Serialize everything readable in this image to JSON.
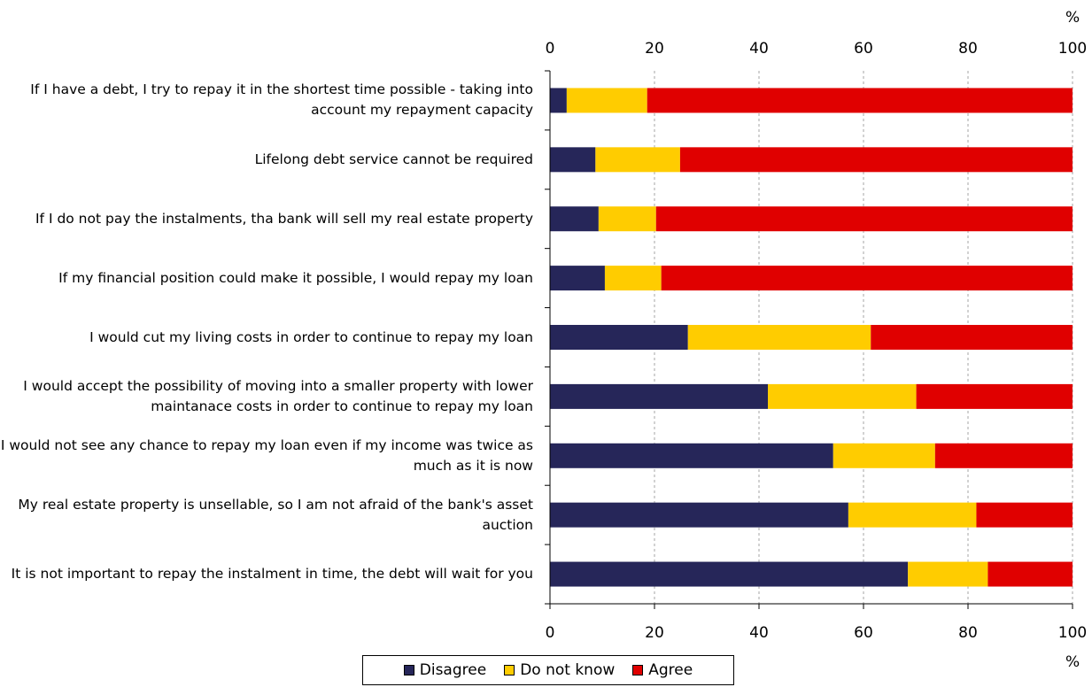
{
  "chart_data": {
    "type": "bar",
    "orientation": "horizontal",
    "stacked": true,
    "categories": [
      "If I have a debt, I try to repay it in the shortest time possible - taking into account my repayment capacity",
      "Lifelong debt service cannot be required",
      "If I do not pay the instalments, tha bank will sell my real estate property",
      "If my financial position could make it possible, I would repay my loan",
      "I would cut my living costs in order to continue to repay my loan",
      "I would accept the possibility of moving into a smaller property with lower maintanace costs in order to continue to repay my loan",
      "I would not see any chance to repay my loan even if my income was twice as much as it is now",
      "My real estate property is unsellable, so I am not afraid of the bank's asset auction",
      "It is not important to repay the instalment in time, the debt will wait for you"
    ],
    "series": [
      {
        "name": "Disagree",
        "color": "#262659",
        "values": [
          3.2,
          8.7,
          9.3,
          10.5,
          26.4,
          41.7,
          54.2,
          57.1,
          68.5
        ]
      },
      {
        "name": "Do not know",
        "color": "#ffcc00",
        "values": [
          15.4,
          16.2,
          11.0,
          10.8,
          35.0,
          28.4,
          19.5,
          24.5,
          15.3
        ]
      },
      {
        "name": "Agree",
        "color": "#e00000",
        "values": [
          81.4,
          75.1,
          79.7,
          78.7,
          38.6,
          29.9,
          26.3,
          18.4,
          16.2
        ]
      }
    ],
    "xlim": [
      0,
      100
    ],
    "xticks": [
      "0",
      "20",
      "40",
      "60",
      "80",
      "100"
    ],
    "xunit_top": "%",
    "xunit_bottom": "%",
    "grid": "vertical dashed",
    "legend_position": "bottom-center"
  }
}
